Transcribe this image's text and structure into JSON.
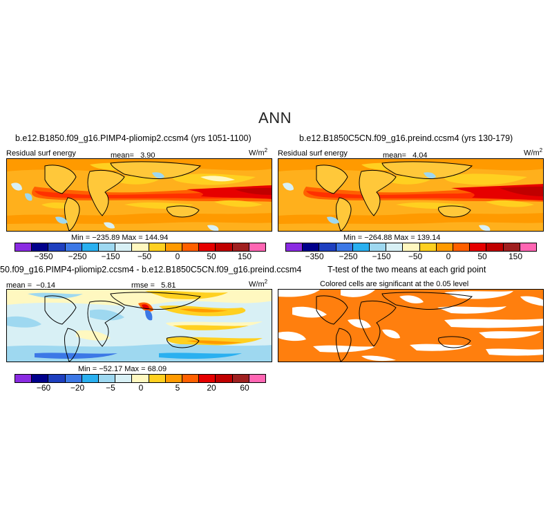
{
  "title": "ANN",
  "panels": [
    {
      "title": "b.e12.B1850.f09_g16.PIMP4-pliomip2.ccsm4 (yrs 1051-1100)",
      "variable": "Residual surf energy",
      "stat_label": "mean=",
      "stat_value": "3.90",
      "units": "W/m",
      "units_exp": "2",
      "minmax": "Min = −235.89  Max = 144.94",
      "colorbar": [
        "#8a2be2",
        "#00008b",
        "#1e3fbf",
        "#3c78e6",
        "#2ab0f0",
        "#9ed8f0",
        "#d8f0f5",
        "#fff8c0",
        "#ffd020",
        "#ff9a00",
        "#ff6000",
        "#e60000",
        "#c00000",
        "#a02020",
        "#ff66b3"
      ],
      "ticks": [
        "−350",
        "−250",
        "−150",
        "−50",
        "0",
        "50",
        "150"
      ]
    },
    {
      "title": "b.e12.B1850C5CN.f09_g16.preind.ccsm4 (yrs 130-179)",
      "variable": "Residual surf energy",
      "stat_label": "mean=",
      "stat_value": "4.04",
      "units": "W/m",
      "units_exp": "2",
      "minmax": "Min = −264.88  Max = 139.14",
      "colorbar": [
        "#8a2be2",
        "#00008b",
        "#1e3fbf",
        "#3c78e6",
        "#2ab0f0",
        "#9ed8f0",
        "#d8f0f5",
        "#fff8c0",
        "#ffd020",
        "#ff9a00",
        "#ff6000",
        "#e60000",
        "#c00000",
        "#a02020",
        "#ff66b3"
      ],
      "ticks": [
        "−350",
        "−250",
        "−150",
        "−50",
        "0",
        "50",
        "150"
      ]
    },
    {
      "title": "50.f09_g16.PIMP4-pliomip2.ccsm4 - b.e12.B1850C5CN.f09_g16.preind.ccsm4",
      "stat_label": "mean = ",
      "stat_value": "−0.14",
      "rmse_label": "rmse = ",
      "rmse_value": "5.81",
      "units": "W/m",
      "units_exp": "2",
      "minmax": "Min = −52.17  Max = 68.09",
      "colorbar": [
        "#8a2be2",
        "#00008b",
        "#1e3fbf",
        "#3c78e6",
        "#2ab0f0",
        "#9ed8f0",
        "#d8f0f5",
        "#fff8c0",
        "#ffd020",
        "#ff9a00",
        "#ff6000",
        "#e60000",
        "#c00000",
        "#a02020",
        "#ff66b3"
      ],
      "ticks": [
        "−60",
        "−20",
        "−5",
        "0",
        "5",
        "20",
        "60"
      ]
    },
    {
      "title": "T-test of the two means at each grid point",
      "subtitle": "Colored cells are significant at the 0.05 level"
    }
  ]
}
